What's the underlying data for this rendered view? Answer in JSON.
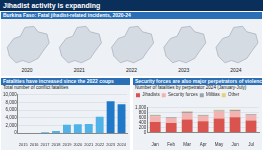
{
  "header": {
    "title": "Jihadist activity is expanding"
  },
  "map_panel": {
    "title": "Burkina Faso: Fatal jihadist-related incidents, 2020-24",
    "years": [
      "2020",
      "2021",
      "2022",
      "2023",
      "2024"
    ]
  },
  "chart_data": [
    {
      "type": "bar",
      "title": "Fatalities have increased since the 2022 coups",
      "subtitle": "Total number of conflict fatalities",
      "categories": [
        "2015",
        "2016",
        "2017",
        "2018",
        "2019",
        "2020",
        "2021",
        "2022",
        "2023",
        "2024"
      ],
      "values": [
        30,
        60,
        250,
        600,
        2200,
        2300,
        2400,
        4300,
        8300,
        7500
      ],
      "colors": [
        "#4fb3e8",
        "#4fb3e8",
        "#4fb3e8",
        "#4fb3e8",
        "#4fb3e8",
        "#4fb3e8",
        "#4fb3e8",
        "#4fb3e8",
        "#1f78c8",
        "#1f78c8"
      ],
      "ylim": [
        0,
        10000
      ],
      "yticks": [
        0,
        {
          "value": 2000,
          "label": "2,000"
        },
        {
          "value": 4000,
          "label": "4,000"
        },
        {
          "value": 6000,
          "label": "6,000"
        },
        {
          "value": 8000,
          "label": "8,000"
        },
        {
          "value": 10000,
          "label": "10,000"
        }
      ],
      "grid": true
    },
    {
      "type": "bar",
      "title": "Security forces are also major perpetrators of violence",
      "subtitle": "Number of fatalities by perpetrator 2024 (January-July)",
      "categories": [
        "Jan",
        "Feb",
        "Mar",
        "Apr",
        "May",
        "Jun",
        "Jul"
      ],
      "series": [
        {
          "name": "Jihadists",
          "color": "#d9534f",
          "values": [
            420,
            380,
            520,
            450,
            560,
            610,
            480
          ]
        },
        {
          "name": "Security forces",
          "color": "#f3b3b0",
          "values": [
            230,
            200,
            260,
            210,
            280,
            250,
            220
          ]
        },
        {
          "name": "Militias",
          "color": "#9aa3ad",
          "values": [
            40,
            30,
            50,
            35,
            45,
            40,
            30
          ]
        },
        {
          "name": "Other",
          "color": "#e6d27a",
          "values": [
            20,
            15,
            25,
            20,
            25,
            20,
            15
          ]
        }
      ],
      "stacked": true,
      "legend": "top",
      "ylim": [
        0,
        1000
      ],
      "yticks": [
        0,
        200,
        400,
        600,
        800,
        {
          "value": 1000,
          "label": "1,000"
        }
      ],
      "grid": true
    }
  ]
}
